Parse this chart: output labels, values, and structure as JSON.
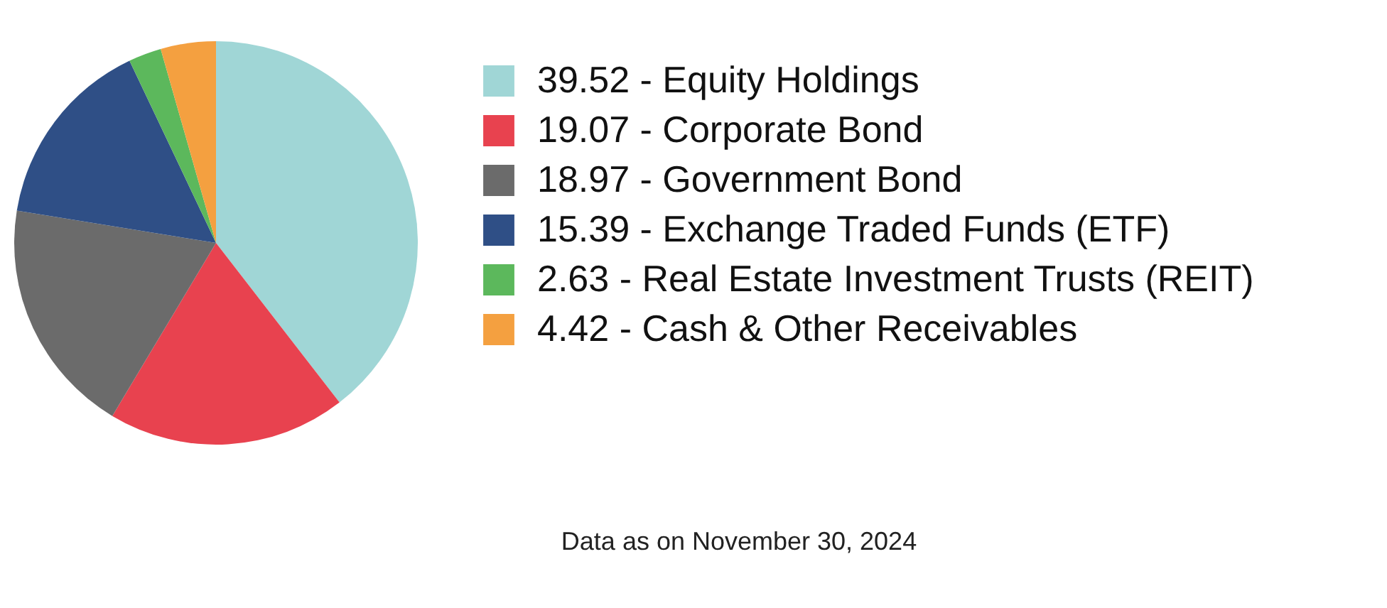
{
  "chart_data": {
    "type": "pie",
    "categories": [
      "39.52 - Equity Holdings",
      "19.07 - Corporate Bond",
      "18.97 - Government Bond",
      "15.39 - Exchange Traded Funds (ETF)",
      "2.63 - Real Estate Investment Trusts (REIT)",
      "4.42 - Cash & Other Receivables"
    ],
    "values": [
      39.52,
      19.07,
      18.97,
      15.39,
      2.63,
      4.42
    ],
    "colors": [
      "#a0d6d6",
      "#e8424f",
      "#6b6b6b",
      "#2f4f86",
      "#5cb85c",
      "#f4a040"
    ],
    "legend": "right",
    "annotations": [
      "Data as on November 30, 2024"
    ]
  }
}
